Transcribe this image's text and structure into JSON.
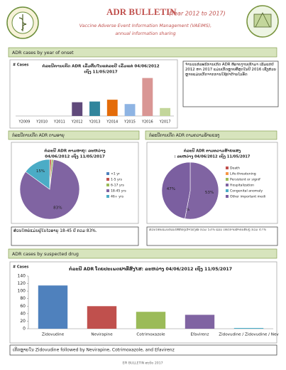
{
  "header": {
    "title": "ADR BULLETIN",
    "period": "(Year 2012 to 2017)",
    "subtitle": [
      "Vaccine Adverse Event Information Management (VAEIMS),",
      "annual information sharing"
    ]
  },
  "sections": [
    "ADR cases by year of onset",
    "ກໍລະນີການເກີດ ADR ຕາມອາຍຸ",
    "ກໍລະນີການເກີດ ADR ຕາມຄວາມຮ້າຍແຮງ",
    "ADR cases by suspected drug"
  ],
  "notes": [
    "ຈຳນວນກໍລະນີການເກີດ ADR ທີ່ລາຍງານເຂົ້າມາ ເລີ່ມແຕ່ປີ 2012 ຫາ 2017 ແມ່ນເກີດຫຼາຍທີ່ສຸດໃນປີ 2016 ເຊິ່ງສ່ວນຫຼາຍແມ່ນເກີດຈາກການໃຊ້ຢາຕ້ານໄວຣັດ",
    "ສ່ວນໃຫຍ່ແມ່ນຢູ່ໃນໄວອາຍຸ 18-45 ປີ ກວມ 83%.",
    "ສ່ວນໃຫຍ່ແມ່ນກໍລະນີທີ່ຕ້ອງເຂົ້າໂຮງໝໍ ກວມ 53% ແລະ ເຫດການສຳຄັນອື່ນໆ ກວມ 47%",
    "ເກີດຫຼາຍໃນ Zidovudine followed by Nevirapine, Cotrimoxazole, and Efavirenz"
  ],
  "footer": "EPI BULLETIN ສະບັບ 2017",
  "chart_data": [
    {
      "type": "bar",
      "title": [
        "ກໍລະນີການເກີດ ADR ເລີ່ມຕົ້ນໃນແຕ່ລະປີ ເລີ່ມແຕ່ 04/06/2012",
        "ເຖິງ 11/05/2017"
      ],
      "y_label": "# Cases",
      "categories": [
        "Y2009",
        "Y2010",
        "Y2011",
        "Y2012",
        "Y2013",
        "Y2014",
        "Y2015",
        "Y2016",
        "Y2017"
      ],
      "values": [
        0,
        0,
        0,
        38,
        40,
        45,
        33,
        105,
        22
      ],
      "colors": [
        "#4f81bd",
        "#c0504d",
        "#9bbb59",
        "#604a7b",
        "#31859c",
        "#e46c0a",
        "#8eb4e3",
        "#d99694",
        "#c3d69b"
      ],
      "ylim": [
        0,
        120
      ]
    },
    {
      "type": "pie",
      "title": [
        "ກໍລະນີ ADR ຕາມອາຍຸ: ລະຫວ່າງ",
        "04/06/2012 ເຖິງ 11/05/2017"
      ],
      "categories": [
        "<1 yr",
        "1-5 yrs",
        "6-17 yrs",
        "18-45 yrs",
        "46+ yrs"
      ],
      "values": [
        0,
        1,
        1,
        83,
        15
      ],
      "value_labels": [
        null,
        null,
        null,
        "83%",
        "15%"
      ],
      "colors": [
        "#4f81bd",
        "#c0504d",
        "#9bbb59",
        "#8064a2",
        "#4bacc6"
      ]
    },
    {
      "type": "pie",
      "title": [
        "ກໍລະນີ ADR ຕາມຄວາມຮ້າຍແຮງ",
        ": ລະຫວ່າງ 04/06/2012 ເຖິງ 11/05/2017"
      ],
      "categories": [
        "Death",
        "Life-threatening",
        "Persistent or signif",
        "Hospitalization",
        "Congenital anomaly",
        "Other important medi"
      ],
      "values": [
        0,
        0,
        0,
        53,
        0,
        47
      ],
      "value_labels": [
        "0%",
        null,
        null,
        "53%",
        "0%",
        "47%"
      ],
      "colors": [
        "#c0504d",
        "#f79646",
        "#9bbb59",
        "#8064a2",
        "#4bacc6",
        "#7b5fa0"
      ]
    },
    {
      "type": "bar",
      "title": [
        "ກໍລະນີ ADR ໂດຍປະເພດຢາທີ່ສົງໄສ: ລະຫວ່າງ 04/06/2012 ເຖິງ 11/05/2017"
      ],
      "y_label": "# Cases",
      "categories": [
        "Zidovudine",
        "Nevirapine",
        "Cotrimoxazole",
        "Efavirenz",
        "Zidovudine / Zidovudine / Nev"
      ],
      "values": [
        115,
        60,
        45,
        37,
        2
      ],
      "colors": [
        "#4f81bd",
        "#c0504d",
        "#9bbb59",
        "#8064a2",
        "#4bacc6"
      ],
      "ylim": [
        0,
        140
      ],
      "yticks": [
        0,
        20,
        40,
        60,
        80,
        100,
        120,
        140
      ]
    }
  ]
}
